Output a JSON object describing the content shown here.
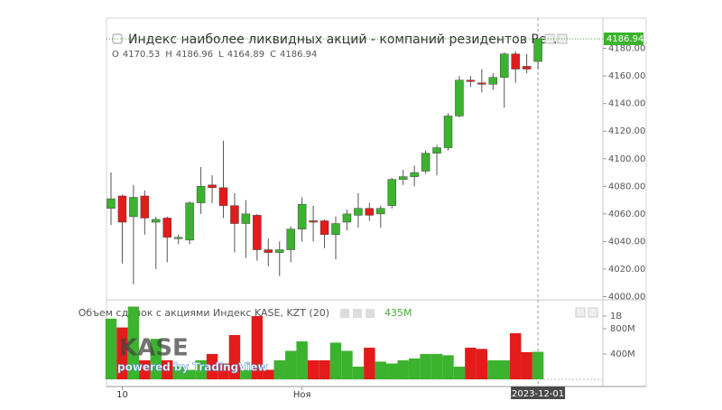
{
  "chart_data": {
    "type": "candlestick",
    "title": "Индекс наиболее ликвидных акций - компаний резидентов Рес...",
    "ohlc_letters": [
      "O",
      "H",
      "L",
      "C"
    ],
    "categories": [
      null,
      "10",
      null,
      null,
      null,
      null,
      null,
      null,
      null,
      null,
      null,
      null,
      null,
      null,
      null,
      null,
      null,
      "Ноя",
      null,
      null,
      null,
      null,
      null,
      null,
      null,
      null,
      null,
      null,
      null,
      null,
      null,
      null,
      null,
      null,
      null,
      null,
      null,
      null,
      "2023-12-01"
    ],
    "open": [
      4064,
      4073,
      4058,
      4073,
      4054,
      4057,
      4042,
      4041,
      4068,
      4081,
      4079,
      4066,
      4053,
      4059,
      4034,
      4032,
      4034,
      4049,
      4055,
      4055,
      4045,
      4054,
      4059,
      4064,
      4060,
      4066,
      4085,
      4087,
      4091,
      4104,
      4108,
      4131,
      4157,
      4155,
      4154,
      4159,
      4176,
      4167,
      4170.53
    ],
    "high": [
      4090,
      4074,
      4081,
      4077,
      4058,
      4058,
      4045,
      4069,
      4094,
      4088,
      4113,
      4075,
      4070,
      4060,
      4042,
      4040,
      4051,
      4072,
      4066,
      4056,
      4058,
      4063,
      4075,
      4068,
      4066,
      4086,
      4092,
      4095,
      4106,
      4110,
      4133,
      4160,
      4160,
      4165,
      4162,
      4177,
      4178,
      4176,
      4186.96
    ],
    "low": [
      4052,
      4024,
      4009,
      4045,
      4020,
      4025,
      4038,
      4038,
      4060,
      4068,
      4057,
      4032,
      4028,
      4026,
      4022,
      4015,
      4025,
      4040,
      4040,
      4035,
      4027,
      4048,
      4050,
      4055,
      4050,
      4064,
      4081,
      4080,
      4089,
      4088,
      4106,
      4130,
      4152,
      4148,
      4150,
      4137,
      4155,
      4162,
      4164.89
    ],
    "close": [
      4071,
      4054,
      4072,
      4057,
      4056,
      4043,
      4043,
      4068,
      4080,
      4079,
      4066,
      4053,
      4060,
      4034,
      4032,
      4034,
      4049,
      4067,
      4054,
      4045,
      4053,
      4060,
      4064,
      4059,
      4064,
      4085,
      4087,
      4090,
      4104,
      4108,
      4131,
      4157,
      4156,
      4154,
      4159,
      4176,
      4165,
      4165,
      4186.94
    ],
    "up_color": "#3cb32e",
    "down_color": "#e31b1b",
    "ylim": [
      3999,
      4202
    ],
    "yticks": [
      {
        "value": 4000,
        "label": "4000.00"
      },
      {
        "value": 4020,
        "label": "4020.00"
      },
      {
        "value": 4040,
        "label": "4040.00"
      },
      {
        "value": 4060,
        "label": "4060.00"
      },
      {
        "value": 4080,
        "label": "4080.00"
      },
      {
        "value": 4100,
        "label": "4100.00"
      },
      {
        "value": 4120,
        "label": "4120.00"
      },
      {
        "value": 4140,
        "label": "4140.00"
      },
      {
        "value": 4160,
        "label": "4160.00"
      },
      {
        "value": 4180,
        "label": "4180.00"
      }
    ],
    "volume": {
      "title": "Объем сделок с акциями Индекс KASE, KZT (20)",
      "last_label": "435M",
      "values": [
        960,
        820,
        1150,
        300,
        640,
        300,
        200,
        150,
        300,
        400,
        250,
        700,
        150,
        1000,
        150,
        300,
        450,
        600,
        300,
        300,
        580,
        450,
        200,
        500,
        280,
        250,
        300,
        330,
        400,
        400,
        380,
        200,
        500,
        480,
        300,
        300,
        730,
        430,
        435
      ],
      "ylim": [
        0,
        1200
      ],
      "yticks": [
        {
          "value": 400,
          "label": "400M"
        },
        {
          "value": 800,
          "label": "800M"
        },
        {
          "value": 1000,
          "label": "1B"
        }
      ]
    },
    "watermark": "KASE",
    "watermark_sub": "powered by TradingView"
  }
}
